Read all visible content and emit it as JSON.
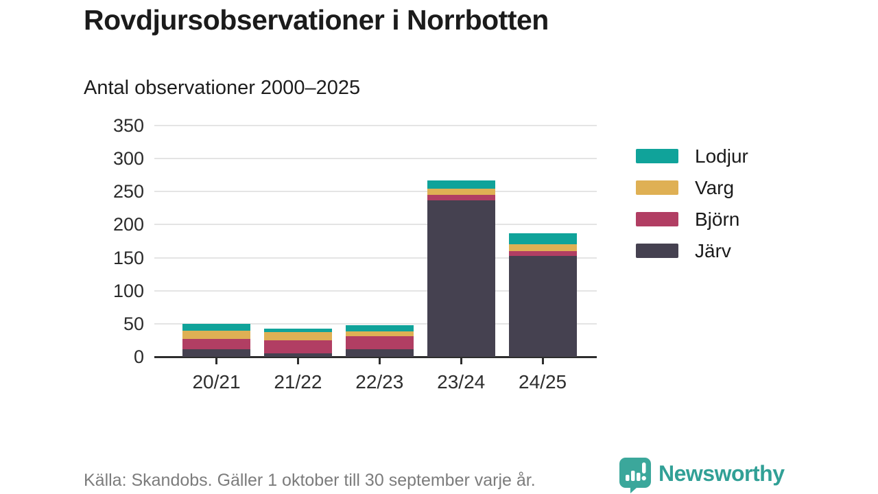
{
  "header": {
    "title": "Rovdjursobservationer i Norrbotten",
    "subtitle": "Antal observationer 2000–2025"
  },
  "chart_data": {
    "type": "bar",
    "stacked": true,
    "title": "Rovdjursobservationer i Norrbotten",
    "subtitle": "Antal observationer 2000–2025",
    "categories": [
      "20/21",
      "21/22",
      "22/23",
      "23/24",
      "24/25"
    ],
    "series": [
      {
        "name": "Järv",
        "color": "#454150",
        "values": [
          11,
          5,
          11,
          237,
          153
        ]
      },
      {
        "name": "Björn",
        "color": "#b13e63",
        "values": [
          16,
          20,
          20,
          8,
          7
        ]
      },
      {
        "name": "Varg",
        "color": "#dfb054",
        "values": [
          12,
          12,
          7,
          9,
          10
        ]
      },
      {
        "name": "Lodjur",
        "color": "#10a39a",
        "values": [
          11,
          6,
          10,
          13,
          17
        ]
      }
    ],
    "legend_order": [
      "Lodjur",
      "Varg",
      "Björn",
      "Järv"
    ],
    "y_ticks": [
      0,
      50,
      100,
      150,
      200,
      250,
      300,
      350
    ],
    "ylim": [
      0,
      350
    ],
    "xlabel": "",
    "ylabel": "",
    "grid": "horizontal",
    "legend_position": "right",
    "grid_color": "#e4e4e4",
    "axis_color": "#2d2d2d"
  },
  "footer": {
    "source": "Källa: Skandobs. Gäller 1 oktober till 30 september varje år.",
    "brand": "Newsworthy",
    "brand_color": "#31a096",
    "logo_color": "#3ba79b"
  }
}
